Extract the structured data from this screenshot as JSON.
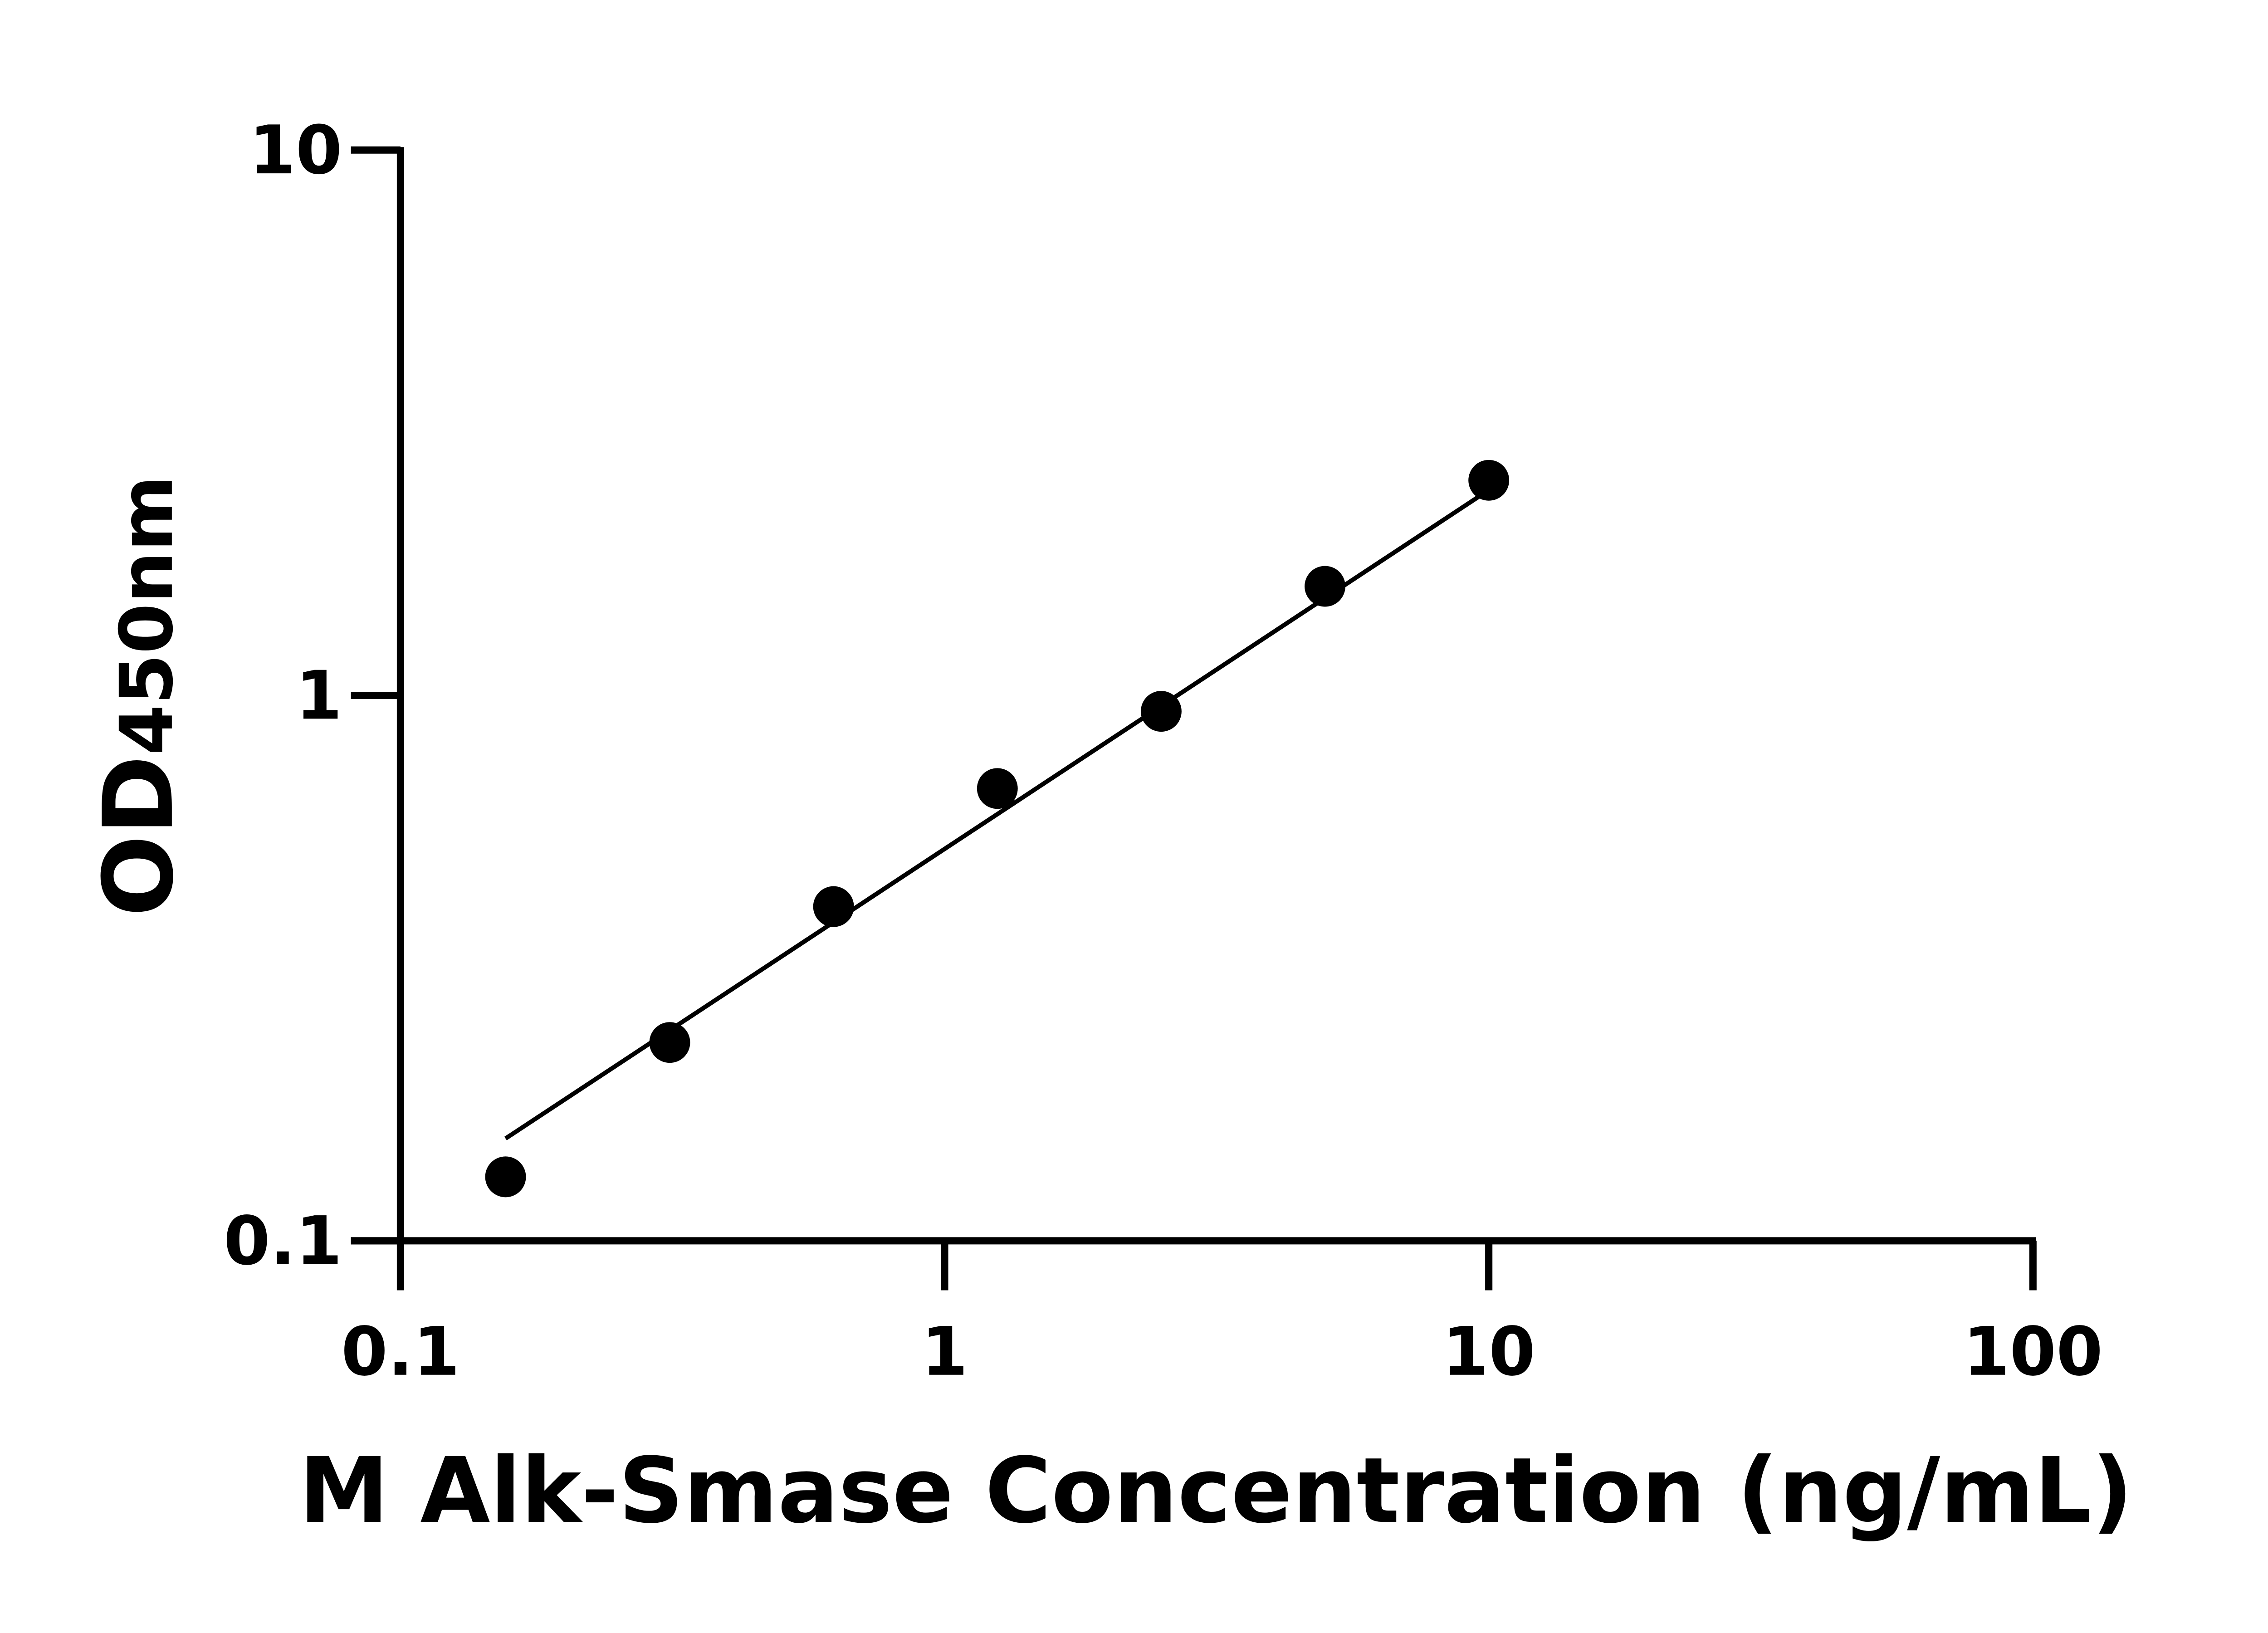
{
  "chart_data": {
    "type": "scatter",
    "x_label": "M Alk-Smase Concentration (ng/mL)",
    "y_label": {
      "main": "OD",
      "sub": "450nm"
    },
    "x_log": true,
    "y_log": true,
    "xlim": [
      0.1,
      100
    ],
    "ylim": [
      0.1,
      10
    ],
    "xticks": [
      0.1,
      1,
      10,
      100
    ],
    "yticks": [
      0.1,
      1,
      10
    ],
    "color": "#000000",
    "x": [
      0.156,
      0.3125,
      0.625,
      1.25,
      2.5,
      5,
      10
    ],
    "values": [
      0.131,
      0.231,
      0.41,
      0.675,
      0.935,
      1.585,
      2.48
    ],
    "fit": {
      "x": [
        0.156,
        10
      ],
      "y": [
        0.154,
        2.38
      ]
    }
  }
}
